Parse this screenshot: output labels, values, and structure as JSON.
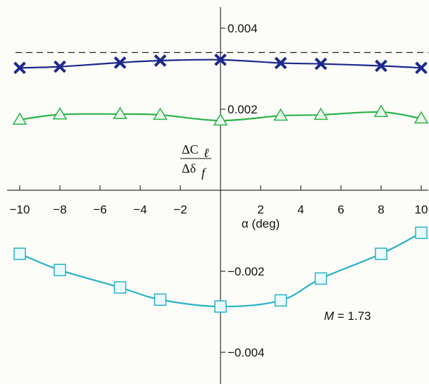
{
  "chart_data": {
    "type": "line",
    "title": "",
    "xlabel": "α (deg)",
    "ylabel": {
      "numerator": "ΔC",
      "numerator_sub": "ℓ",
      "denominator": "Δδ",
      "denominator_sub": "f"
    },
    "xlim": [
      -10,
      10
    ],
    "ylim": [
      -0.0047,
      0.0045
    ],
    "x_ticks": [
      {
        "value": -10,
        "label": "−10"
      },
      {
        "value": -8,
        "label": "−8"
      },
      {
        "value": -6,
        "label": "−6"
      },
      {
        "value": -4,
        "label": "−4"
      },
      {
        "value": -2,
        "label": "−2"
      },
      {
        "value": 2,
        "label": "2"
      },
      {
        "value": 4,
        "label": "4"
      },
      {
        "value": 6,
        "label": "6"
      },
      {
        "value": 8,
        "label": "8"
      },
      {
        "value": 10,
        "label": "10"
      }
    ],
    "y_ticks": [
      {
        "value": 0.004,
        "label": "0.004"
      },
      {
        "value": 0.002,
        "label": "0.002"
      },
      {
        "value": -0.002,
        "label": "−0.002"
      },
      {
        "value": -0.004,
        "label": "−0.004"
      }
    ],
    "grid": false,
    "reference_line": {
      "y": 0.0034,
      "style": "dashed"
    },
    "annotation": {
      "prefix": "M",
      "text": " = 1.73"
    },
    "series": [
      {
        "marker": "x",
        "color": "#1d2a8c",
        "x": [
          -10,
          -8,
          -5,
          -3,
          0,
          3,
          5,
          8,
          10
        ],
        "values": [
          0.00302,
          0.00305,
          0.00315,
          0.0032,
          0.00322,
          0.00314,
          0.00312,
          0.00307,
          0.00302
        ]
      },
      {
        "marker": "triangle",
        "color": "#2bb34a",
        "x": [
          -10,
          -8,
          -5,
          -3,
          0,
          3,
          5,
          8,
          10
        ],
        "values": [
          0.00174,
          0.00187,
          0.00188,
          0.00186,
          0.00172,
          0.00184,
          0.00186,
          0.00193,
          0.00177
        ]
      },
      {
        "marker": "square",
        "color": "#27b3c8",
        "x": [
          -10,
          -8,
          -5,
          -3,
          0,
          3,
          5,
          8,
          10
        ],
        "values": [
          -0.00157,
          -0.00197,
          -0.0024,
          -0.0027,
          -0.00287,
          -0.00272,
          -0.00218,
          -0.00157,
          -0.00105
        ]
      }
    ]
  }
}
